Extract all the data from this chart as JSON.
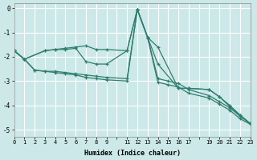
{
  "xlabel": "Humidex (Indice chaleur)",
  "bg_color": "#cce8e8",
  "grid_color": "#ffffff",
  "line_color": "#2e7d6e",
  "xlim": [
    0,
    23
  ],
  "ylim": [
    -5.3,
    0.2
  ],
  "xticks": [
    0,
    1,
    2,
    3,
    4,
    5,
    6,
    7,
    8,
    9,
    11,
    12,
    13,
    14,
    15,
    16,
    17,
    19,
    20,
    21,
    22,
    23
  ],
  "yticks": [
    0,
    -1,
    -2,
    -3,
    -4,
    -5
  ],
  "series": [
    {
      "x": [
        0,
        1,
        3,
        4,
        5,
        6,
        7,
        8,
        9,
        11,
        12,
        13,
        14,
        16,
        17,
        19,
        20,
        21,
        22,
        23
      ],
      "y": [
        -1.75,
        -2.1,
        -1.75,
        -1.7,
        -1.65,
        -1.6,
        -1.55,
        -1.7,
        -1.7,
        -1.75,
        -0.05,
        -1.2,
        -1.6,
        -3.3,
        -3.3,
        -3.35,
        -3.65,
        -4.0,
        -4.4,
        -4.75
      ]
    },
    {
      "x": [
        0,
        1,
        3,
        4,
        5,
        6,
        7,
        8,
        9,
        11,
        12,
        13,
        14,
        16,
        17,
        19,
        20,
        21,
        22,
        23
      ],
      "y": [
        -1.75,
        -2.1,
        -1.75,
        -1.7,
        -1.7,
        -1.65,
        -2.2,
        -2.3,
        -2.3,
        -1.75,
        -0.05,
        -1.2,
        -2.3,
        -3.3,
        -3.3,
        -3.35,
        -3.65,
        -4.05,
        -4.4,
        -4.75
      ]
    },
    {
      "x": [
        0,
        1,
        2,
        3,
        4,
        5,
        6,
        7,
        8,
        9,
        11,
        12,
        13,
        14,
        15,
        16,
        17,
        19,
        20,
        21,
        22,
        23
      ],
      "y": [
        -1.75,
        -2.1,
        -2.55,
        -2.6,
        -2.6,
        -2.65,
        -2.7,
        -2.75,
        -2.8,
        -2.85,
        -2.9,
        -0.05,
        -1.2,
        -2.9,
        -3.0,
        -3.1,
        -3.35,
        -3.6,
        -3.85,
        -4.1,
        -4.45,
        -4.75
      ]
    },
    {
      "x": [
        0,
        1,
        2,
        3,
        4,
        5,
        6,
        7,
        8,
        9,
        11,
        12,
        13,
        14,
        15,
        16,
        17,
        19,
        20,
        21,
        22,
        23
      ],
      "y": [
        -1.75,
        -2.1,
        -2.55,
        -2.6,
        -2.65,
        -2.7,
        -2.75,
        -2.85,
        -2.9,
        -2.95,
        -3.0,
        -0.05,
        -1.2,
        -3.05,
        -3.15,
        -3.25,
        -3.5,
        -3.7,
        -3.95,
        -4.2,
        -4.55,
        -4.78
      ]
    }
  ]
}
